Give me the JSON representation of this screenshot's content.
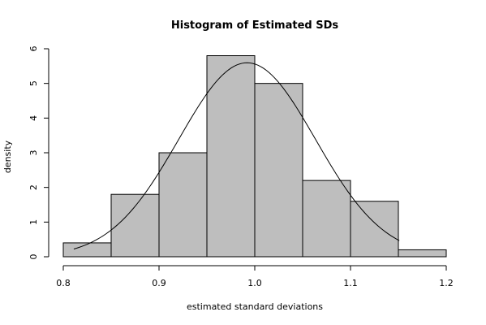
{
  "chart_data": {
    "type": "bar",
    "title": "Histogram of Estimated SDs",
    "xlabel": "estimated standard deviations",
    "ylabel": "density",
    "xlim": [
      0.8,
      1.2
    ],
    "ylim": [
      0,
      6
    ],
    "x_ticks": [
      "0.8",
      "0.9",
      "1.0",
      "1.1",
      "1.2"
    ],
    "y_ticks": [
      "0",
      "1",
      "2",
      "3",
      "4",
      "5",
      "6"
    ],
    "bins": [
      {
        "x0": 0.8,
        "x1": 0.85,
        "density": 0.4
      },
      {
        "x0": 0.85,
        "x1": 0.9,
        "density": 1.8
      },
      {
        "x0": 0.9,
        "x1": 0.95,
        "density": 3.0
      },
      {
        "x0": 0.95,
        "x1": 1.0,
        "density": 5.8
      },
      {
        "x0": 1.0,
        "x1": 1.05,
        "density": 5.0
      },
      {
        "x0": 1.05,
        "x1": 1.1,
        "density": 2.2
      },
      {
        "x0": 1.1,
        "x1": 1.15,
        "density": 1.6
      },
      {
        "x0": 1.15,
        "x1": 1.2,
        "density": 0.2
      }
    ],
    "density_curve": {
      "mean": 0.992,
      "sd": 0.0713,
      "x_range": [
        0.811,
        1.151
      ]
    },
    "bar_fill": "#bebebe",
    "line_color": "#000000",
    "grid": false,
    "legend": "none"
  }
}
